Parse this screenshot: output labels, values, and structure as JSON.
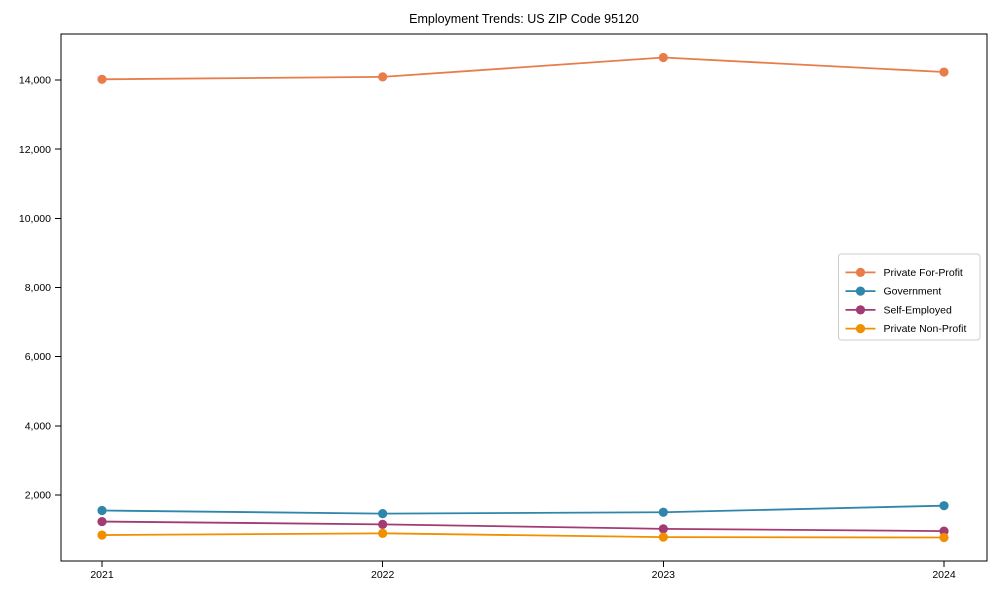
{
  "title": "Employment Trends: US ZIP Code 95120",
  "colors": {
    "background": "#FFFFFF",
    "axis": "#000000",
    "text": "#000000",
    "legend_border": "#CCCCCC",
    "private_for_profit": "#E87D4A",
    "government": "#2E86AB",
    "self_employed": "#A23B72",
    "private_non_profit": "#F18F01"
  },
  "chart_data": {
    "type": "line",
    "title": "Employment Trends: US ZIP Code 95120",
    "categories": [
      "2021",
      "2022",
      "2023",
      "2024"
    ],
    "series": [
      {
        "name": "Private For-Profit",
        "color": "#E87D4A",
        "values": [
          14020,
          14090,
          14650,
          14230
        ]
      },
      {
        "name": "Government",
        "color": "#2E86AB",
        "values": [
          1550,
          1460,
          1500,
          1690
        ]
      },
      {
        "name": "Self-Employed",
        "color": "#A23B72",
        "values": [
          1230,
          1150,
          1020,
          955
        ]
      },
      {
        "name": "Private Non-Profit",
        "color": "#F18F01",
        "values": [
          840,
          890,
          780,
          770
        ]
      }
    ],
    "xlabel": "",
    "ylabel": "",
    "ylim": [
      90,
      15330
    ],
    "y_ticks": [
      2000,
      4000,
      6000,
      8000,
      10000,
      12000,
      14000
    ],
    "y_tick_labels": [
      "2,000",
      "4,000",
      "6,000",
      "8,000",
      "10,000",
      "12,000",
      "14,000"
    ],
    "grid": false,
    "legend_position": "center right",
    "marker": "circle",
    "line_width": 1.8,
    "marker_radius": 4.6
  }
}
